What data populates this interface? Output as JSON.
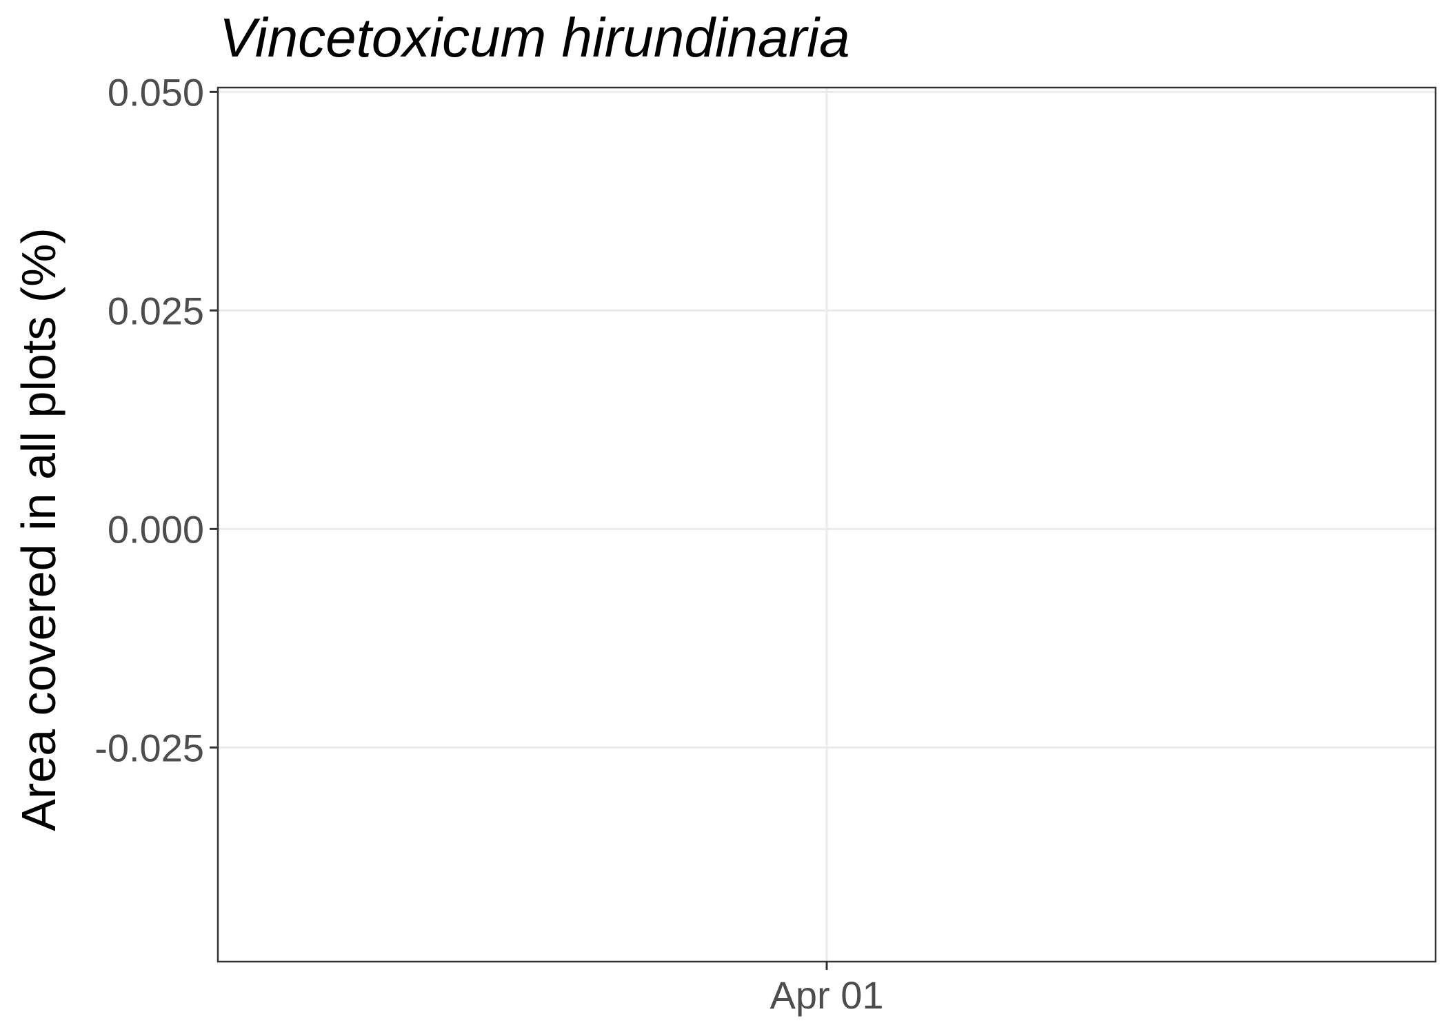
{
  "chart_data": {
    "type": "line",
    "title": "Vincetoxicum hirundinaria",
    "xlabel": "",
    "ylabel": "Area covered in all plots (%)",
    "x_ticks": [
      "Apr 01"
    ],
    "y_ticks": [
      {
        "value": 0.05,
        "label": "0.050"
      },
      {
        "value": 0.025,
        "label": "0.025"
      },
      {
        "value": 0.0,
        "label": "0.000"
      },
      {
        "value": -0.025,
        "label": "-0.025"
      }
    ],
    "ylim": [
      -0.0495,
      0.0505
    ],
    "grid": true,
    "series": []
  }
}
